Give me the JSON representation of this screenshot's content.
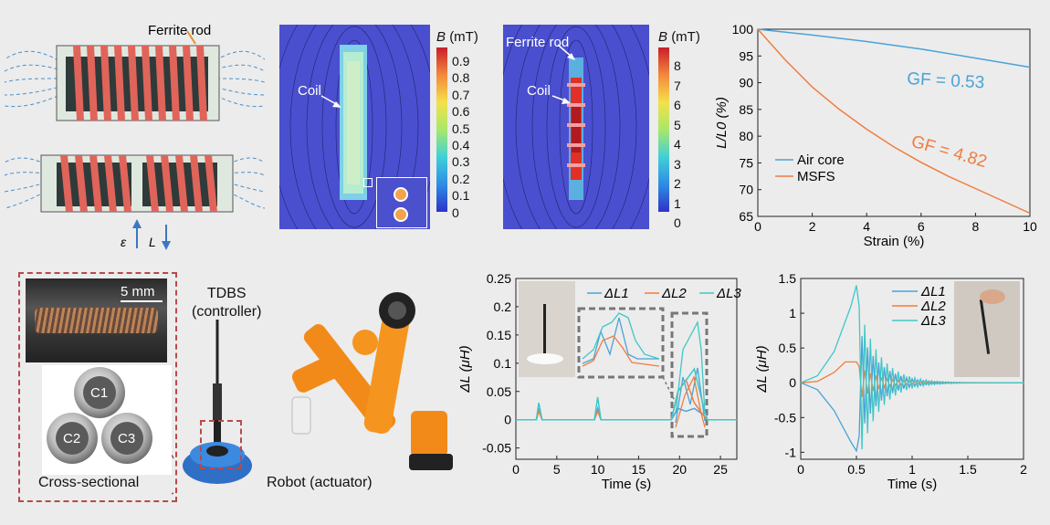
{
  "panel_a": {
    "ferrite_label": "Ferrite rod",
    "epsilon_label": "ε",
    "L_label": "L"
  },
  "panel_b": {
    "cb_label": "B",
    "cb_unit": "(mT)",
    "cb_ticks": [
      "0.9",
      "0.8",
      "0.7",
      "0.6",
      "0.5",
      "0.4",
      "0.3",
      "0.2",
      "0.1",
      "0"
    ],
    "coil_label": "Coil"
  },
  "panel_c": {
    "cb_label": "B",
    "cb_unit": "(mT)",
    "cb_ticks": [
      "8",
      "7",
      "6",
      "5",
      "4",
      "3",
      "2",
      "1",
      "0"
    ],
    "ferrite_label": "Ferrite rod",
    "coil_label": "Coil"
  },
  "panel_e": {
    "scale_bar": "5 mm",
    "c1": "C1",
    "c2": "C2",
    "c3": "C3",
    "cross_label": "Cross-sectional",
    "tdbs_line1": "TDBS",
    "tdbs_line2": "(controller)",
    "robot_label": "Robot (actuator)"
  },
  "colors": {
    "blue": "#4aa3d8",
    "orange": "#f07d3f",
    "cyan": "#3ec8c6",
    "dashed_red": "#b84a4a"
  },
  "chart_data": [
    {
      "type": "line",
      "xlabel": "Strain (%)",
      "ylabel": "L/L0 (%)",
      "xlim": [
        0,
        10
      ],
      "ylim": [
        65,
        100
      ],
      "xticks": [
        "0",
        "2",
        "4",
        "6",
        "8",
        "10"
      ],
      "yticks": [
        "100",
        "95",
        "90",
        "85",
        "80",
        "75",
        "70",
        "65"
      ],
      "legend": "bottom-left",
      "series": [
        {
          "name": "Air core",
          "x": [
            0,
            2,
            4,
            6,
            8,
            10
          ],
          "values": [
            100,
            98.9,
            97.7,
            96.3,
            94.6,
            92.9
          ]
        },
        {
          "name": "MSFS",
          "x": [
            0,
            1,
            2,
            3,
            4,
            5,
            6,
            7,
            8,
            9,
            10
          ],
          "values": [
            100,
            94.3,
            89.2,
            85.0,
            81.3,
            78.0,
            75.1,
            72.5,
            70.2,
            67.9,
            65.6
          ]
        }
      ],
      "annotations": [
        "GF = 0.53",
        "GF = 4.82"
      ]
    },
    {
      "type": "line",
      "xlabel": "Time (s)",
      "ylabel": "ΔL (μH)",
      "xlim": [
        0,
        27
      ],
      "ylim": [
        -0.07,
        0.25
      ],
      "xticks": [
        "0",
        "5",
        "10",
        "15",
        "20",
        "25"
      ],
      "yticks": [
        "0.25",
        "0.2",
        "0.15",
        "0.1",
        "0.05",
        "0",
        "-0.05"
      ],
      "legend": "top",
      "series": [
        {
          "name": "ΔL1",
          "x": [
            0,
            2.5,
            2.8,
            3.2,
            9.6,
            10.0,
            10.4,
            19,
            19.8,
            20.8,
            21.8,
            22.8,
            23.4,
            27
          ],
          "values": [
            0,
            0,
            0.02,
            0,
            0,
            0.02,
            0,
            0,
            0.02,
            0.015,
            0.02,
            0.01,
            0,
            0
          ]
        },
        {
          "name": "ΔL2",
          "x": [
            0,
            2.5,
            2.8,
            3.2,
            9.6,
            10.0,
            10.4,
            19,
            19.8,
            20.8,
            21.8,
            22.8,
            23.4,
            27
          ],
          "values": [
            0,
            0,
            0.015,
            0,
            0,
            0.015,
            0,
            0,
            0.05,
            0.07,
            0.03,
            0.01,
            0,
            0
          ]
        },
        {
          "name": "ΔL3",
          "x": [
            0,
            2.5,
            2.8,
            3.2,
            9.6,
            10.0,
            10.4,
            19,
            19.8,
            20.8,
            21.8,
            22.8,
            23.4,
            27
          ],
          "values": [
            0,
            0,
            0.03,
            0,
            0,
            0.04,
            0,
            0,
            0.05,
            0.07,
            0.09,
            0.03,
            0,
            0
          ]
        }
      ]
    },
    {
      "type": "line",
      "xlabel": "Time (s)",
      "ylabel": "ΔL (μH)",
      "xlim": [
        0,
        2
      ],
      "ylim": [
        -1.1,
        1.5
      ],
      "xticks": [
        "0",
        "0.5",
        "1",
        "1.5",
        "2"
      ],
      "yticks": [
        "1.5",
        "1",
        "0.5",
        "0",
        "-0.5",
        "-1"
      ],
      "legend": "top-left",
      "series": [
        {
          "name": "ΔL1",
          "x": [
            0,
            0.15,
            0.3,
            0.45,
            0.5
          ],
          "values": [
            0,
            -0.1,
            -0.4,
            -0.85,
            -0.98
          ]
        },
        {
          "name": "ΔL2",
          "x": [
            0,
            0.15,
            0.3,
            0.4,
            0.5
          ],
          "values": [
            0,
            0.02,
            0.15,
            0.3,
            0.3
          ]
        },
        {
          "name": "ΔL3",
          "x": [
            0,
            0.15,
            0.3,
            0.45,
            0.5
          ],
          "values": [
            0,
            0.1,
            0.45,
            1.1,
            1.4
          ]
        }
      ]
    }
  ]
}
